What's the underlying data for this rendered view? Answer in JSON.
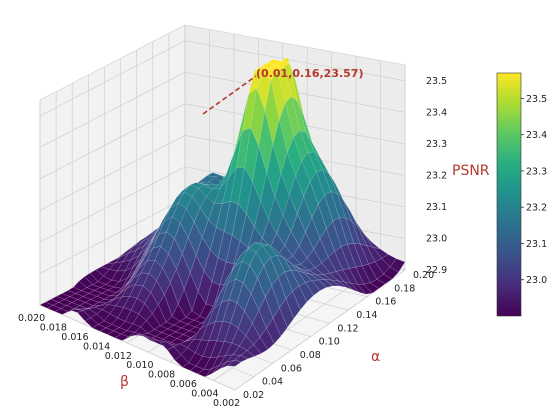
{
  "chart_data": {
    "type": "surface3d",
    "zlabel": "PSNR",
    "xlabel": "β",
    "ylabel": "α",
    "colormap": "viridis",
    "beta_ticks": [
      "0.020",
      "0.018",
      "0.016",
      "0.014",
      "0.012",
      "0.010",
      "0.008",
      "0.006",
      "0.004",
      "0.002"
    ],
    "alpha_ticks": [
      "0.02",
      "0.04",
      "0.06",
      "0.08",
      "0.10",
      "0.12",
      "0.14",
      "0.16",
      "0.18",
      "0.20"
    ],
    "z_ticks": [
      "22.9",
      "23.0",
      "23.1",
      "23.2",
      "23.3",
      "23.4",
      "23.5"
    ],
    "colorbar_ticks": [
      "23.0",
      "23.1",
      "23.2",
      "23.3",
      "23.4",
      "23.5"
    ],
    "beta_range": [
      0.002,
      0.02
    ],
    "alpha_range": [
      0.02,
      0.2
    ],
    "z_range": [
      22.9,
      23.55
    ],
    "colorbar_range": [
      22.9,
      23.57
    ],
    "annotation": {
      "text": "(0.01,0.16,23.57)",
      "beta": 0.01,
      "alpha": 0.16,
      "psnr": 23.57
    },
    "grid": true
  }
}
